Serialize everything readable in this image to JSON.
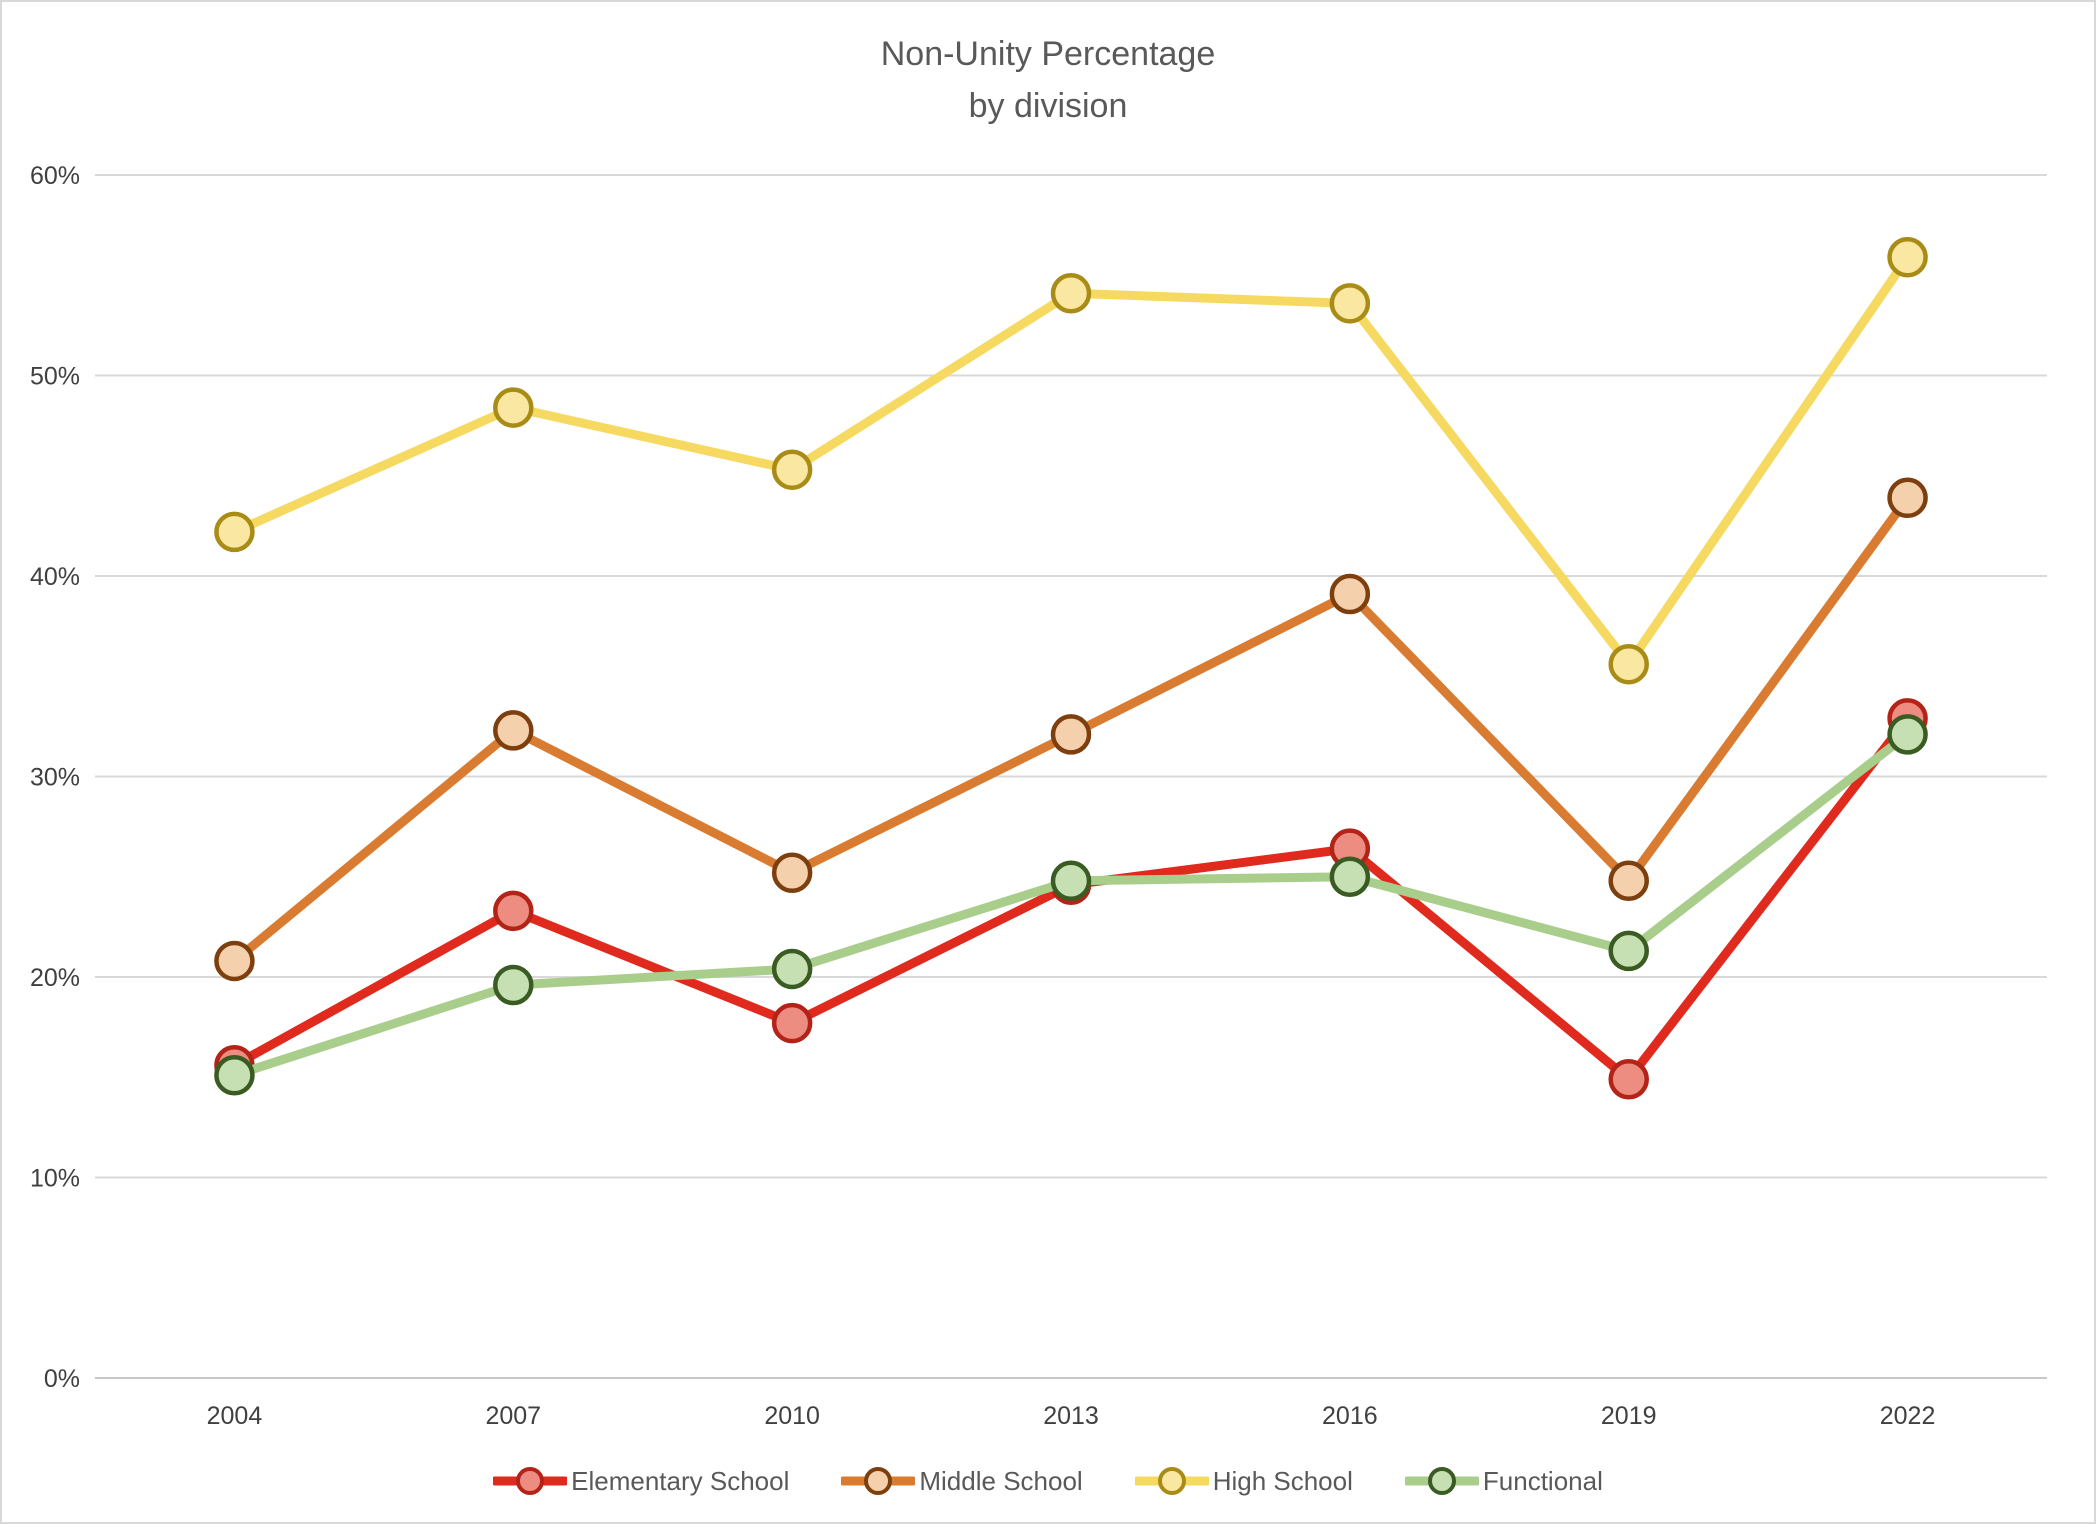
{
  "title": {
    "line1": "Non-Unity Percentage",
    "line2": "by division"
  },
  "chart_data": {
    "type": "line",
    "categories": [
      "2004",
      "2007",
      "2010",
      "2013",
      "2016",
      "2019",
      "2022"
    ],
    "series": [
      {
        "name": "Elementary School",
        "values": [
          15.6,
          23.3,
          17.7,
          24.6,
          26.4,
          14.9,
          32.9
        ],
        "line_color": "#e02a1e",
        "marker_fill": "#ed8c80",
        "marker_stroke": "#b42318"
      },
      {
        "name": "Middle School",
        "values": [
          20.8,
          32.3,
          25.2,
          32.1,
          39.1,
          24.8,
          43.9
        ],
        "line_color": "#d97c31",
        "marker_fill": "#f5d0ac",
        "marker_stroke": "#7e3f0e"
      },
      {
        "name": "High School",
        "values": [
          42.2,
          48.4,
          45.3,
          54.1,
          53.6,
          35.6,
          55.9
        ],
        "line_color": "#f6d961",
        "marker_fill": "#fae8a2",
        "marker_stroke": "#a98c15"
      },
      {
        "name": "Functional",
        "values": [
          15.1,
          19.6,
          20.4,
          24.8,
          25.0,
          21.3,
          32.1
        ],
        "line_color": "#a9ce8c",
        "marker_fill": "#c6e0b4",
        "marker_stroke": "#3a5b22"
      }
    ],
    "xlabel": "",
    "ylabel": "",
    "ylim": [
      0,
      60
    ],
    "y_tick_step": 10,
    "y_tick_labels": [
      "0%",
      "10%",
      "20%",
      "30%",
      "40%",
      "50%",
      "60%"
    ],
    "grid": true,
    "legend_position": "bottom"
  },
  "style": {
    "grid_color": "#d9d9d9",
    "axis_line_color": "#c8c8c8",
    "tick_label_color": "#404040",
    "x_label_color": "#404040",
    "title_color": "#595959",
    "legend_text_color": "#595959"
  }
}
